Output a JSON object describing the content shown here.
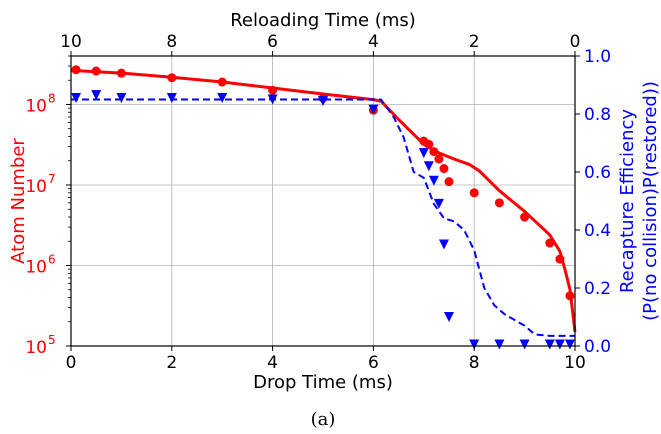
{
  "chart_data": {
    "type": "scatter",
    "caption": "(a)",
    "x_bottom": {
      "label": "Drop Time (ms)",
      "range": [
        0,
        10
      ],
      "ticks": [
        0,
        2,
        4,
        6,
        8,
        10
      ]
    },
    "x_top": {
      "label": "Reloading Time (ms)",
      "range": [
        10,
        0
      ],
      "ticks": [
        10,
        8,
        6,
        4,
        2,
        0
      ]
    },
    "y_left": {
      "label": "Atom Number",
      "scale": "log",
      "range": [
        100000,
        400000000
      ],
      "ticks": [
        100000,
        1000000,
        10000000,
        100000000
      ],
      "tick_labels": [
        "10",
        "10",
        "10",
        "10"
      ],
      "tick_exponents": [
        "5",
        "6",
        "7",
        "8"
      ],
      "color": "#ff0000"
    },
    "y_right": {
      "label_line1": "Recapture Efficiency",
      "label_line2": "(P(no collision)P(restored))",
      "range": [
        0,
        1.0
      ],
      "ticks": [
        "0.0",
        "0.2",
        "0.4",
        "0.6",
        "0.8",
        "1.0"
      ],
      "color": "#0000ff"
    },
    "grid": true,
    "series": [
      {
        "kind": "points",
        "axis": "left",
        "marker": "circle",
        "color": "#ff0000",
        "x": [
          0.1,
          0.5,
          1.0,
          2.0,
          3.0,
          4.0,
          5.0,
          6.0,
          7.0,
          7.1,
          7.2,
          7.3,
          7.4,
          7.5,
          8.0,
          8.5,
          9.0,
          9.5,
          9.7,
          9.9
        ],
        "y": [
          270000000,
          260000000,
          245000000,
          215000000,
          190000000,
          150000000,
          120000000,
          85000000,
          35000000,
          32000000,
          26000000,
          21000000,
          16000000,
          11000000,
          8000000,
          6000000,
          4000000,
          1900000,
          1200000,
          420000
        ]
      },
      {
        "kind": "line",
        "axis": "left",
        "style": "solid",
        "color": "#ff0000",
        "x": [
          0,
          1,
          2,
          3,
          4,
          5,
          6,
          6.15,
          6.5,
          7.0,
          7.3,
          7.6,
          7.9,
          8.1,
          8.5,
          9.0,
          9.5,
          9.7,
          9.8,
          9.9,
          10.0
        ],
        "y": [
          265000000,
          245000000,
          218000000,
          190000000,
          160000000,
          135000000,
          115000000,
          110000000,
          65000000,
          32000000,
          25000000,
          21000000,
          18000000,
          15000000,
          8500000,
          4700000,
          2400000,
          1500000,
          900000,
          500000,
          150000
        ]
      },
      {
        "kind": "points",
        "axis": "right",
        "marker": "triangle-down",
        "color": "#0000ff",
        "x": [
          0.1,
          0.5,
          1.0,
          2.0,
          3.0,
          4.0,
          5.0,
          6.0,
          7.0,
          7.1,
          7.2,
          7.3,
          7.4,
          7.5,
          8.0,
          8.5,
          9.0,
          9.5,
          9.7,
          9.9
        ],
        "y": [
          0.855,
          0.865,
          0.855,
          0.855,
          0.855,
          0.85,
          0.845,
          0.815,
          0.665,
          0.62,
          0.57,
          0.49,
          0.35,
          0.1,
          0.005,
          0.005,
          0.005,
          0.005,
          0.005,
          0.005
        ]
      },
      {
        "kind": "line",
        "axis": "right",
        "style": "dashed",
        "color": "#0000ff",
        "x": [
          0,
          1,
          2,
          3,
          4,
          5,
          6,
          6.15,
          6.4,
          6.6,
          6.8,
          7.0,
          7.2,
          7.4,
          7.6,
          7.8,
          8.0,
          8.2,
          8.4,
          8.6,
          8.8,
          9.0,
          9.2,
          9.5,
          10.0
        ],
        "y": [
          0.85,
          0.85,
          0.85,
          0.85,
          0.85,
          0.85,
          0.85,
          0.85,
          0.79,
          0.72,
          0.6,
          0.58,
          0.49,
          0.44,
          0.43,
          0.4,
          0.33,
          0.2,
          0.14,
          0.11,
          0.09,
          0.07,
          0.04,
          0.035,
          0.035
        ]
      }
    ]
  }
}
